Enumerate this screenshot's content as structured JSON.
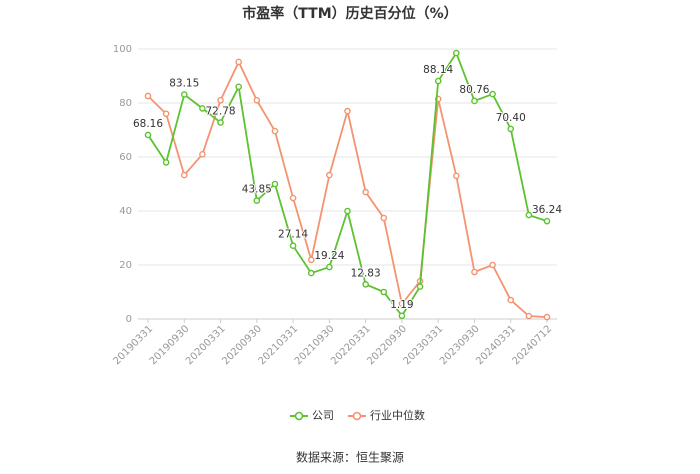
{
  "chart_data": {
    "type": "line",
    "title": "市盈率（TTM）历史百分位（%）",
    "source": "数据来源：恒生聚源",
    "categories": [
      "20190331",
      null,
      "20190930",
      null,
      "20200331",
      null,
      "20200930",
      null,
      "20210331",
      null,
      "20210930",
      null,
      "20220331",
      null,
      "20220930",
      null,
      "20230331",
      null,
      "20230930",
      null,
      "20240331",
      null,
      "20240712"
    ],
    "series": [
      {
        "name": "公司",
        "color": "#5cc22f",
        "values": [
          68.16,
          58,
          83.15,
          78,
          72.78,
          86,
          43.85,
          50,
          27.14,
          17,
          19.24,
          40,
          12.83,
          10,
          1.19,
          12,
          88.14,
          98.5,
          80.76,
          83.3,
          70.4,
          38.5,
          36.24
        ],
        "value_labels": [
          "68.16",
          null,
          "83.15",
          null,
          "72.78",
          null,
          "43.85",
          null,
          "27.14",
          null,
          "19.24",
          null,
          "12.83",
          null,
          "1.19",
          null,
          "88.14",
          null,
          "80.76",
          null,
          "70.40",
          null,
          "36.24"
        ]
      },
      {
        "name": "行业中位数",
        "color": "#f4936f",
        "values": [
          82.6,
          76,
          53.3,
          61,
          81,
          95.2,
          81,
          69.6,
          44.8,
          21.9,
          53.3,
          77,
          47,
          37.4,
          5.6,
          14,
          81.5,
          53,
          17.4,
          20,
          7,
          1.1,
          0.7
        ]
      }
    ],
    "ylim": [
      0,
      100
    ],
    "yticks": [
      0,
      20,
      40,
      60,
      80,
      100
    ],
    "grid": true,
    "legend": "bottom"
  }
}
